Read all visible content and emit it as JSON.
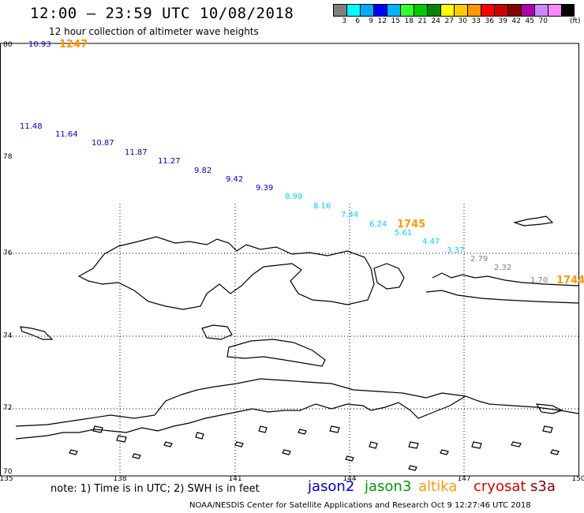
{
  "title": "12:00 – 23:59 UTC 10/08/2018",
  "subtitle": "12 hour collection of altimeter wave heights",
  "scale": {
    "colors": [
      "#808080",
      "#00ffff",
      "#00aaff",
      "#0000ff",
      "#00b4ff",
      "#33ff33",
      "#00cc00",
      "#008800",
      "#ffff00",
      "#ffcc00",
      "#ff9900",
      "#ff0000",
      "#cc0000",
      "#880000",
      "#aa00aa",
      "#cc88ff",
      "#ff88ff",
      "#000000"
    ],
    "labels": [
      "3",
      "6",
      "9",
      "12",
      "15",
      "18",
      "21",
      "24",
      "27",
      "30",
      "33",
      "36",
      "39",
      "42",
      "45",
      "70"
    ],
    "unit": "(ft)"
  },
  "axes": {
    "lon_labels": [
      "135",
      "138",
      "141",
      "144",
      "147",
      "150"
    ],
    "lat_labels": [
      "80",
      "78",
      "76",
      "74",
      "72",
      "70"
    ],
    "lon_range": [
      135,
      150
    ],
    "lat_range": [
      70,
      80
    ]
  },
  "track_colors": {
    "jason2": "#0000cc",
    "altika": "#ff9900",
    "cyan": "#00d0ff",
    "gray": "#808080"
  },
  "observations": [
    {
      "lon": 135.9,
      "lat": 79.95,
      "value": "10.93",
      "color": "jason2"
    },
    {
      "lon": 135.0,
      "lat": 77.95,
      "value": "11.48",
      "color": "jason2"
    },
    {
      "lon": 135.9,
      "lat": 77.7,
      "value": "11.64",
      "color": "jason2"
    },
    {
      "lon": 136.8,
      "lat": 77.45,
      "value": "10.87",
      "color": "jason2"
    },
    {
      "lon": 137.7,
      "lat": 77.2,
      "value": "11.87",
      "color": "jason2"
    },
    {
      "lon": 138.7,
      "lat": 77.0,
      "value": "11.27",
      "color": "jason2"
    },
    {
      "lon": 139.6,
      "lat": 76.75,
      "value": "9.82",
      "color": "jason2"
    },
    {
      "lon": 140.6,
      "lat": 76.5,
      "value": "9.42",
      "color": "jason2"
    },
    {
      "lon": 141.4,
      "lat": 76.3,
      "value": "9.39",
      "color": "jason2"
    },
    {
      "lon": 142.3,
      "lat": 76.1,
      "value": "8.99",
      "color": "cyan"
    },
    {
      "lon": 143.1,
      "lat": 75.9,
      "value": "8.16",
      "color": "cyan"
    },
    {
      "lon": 143.8,
      "lat": 75.65,
      "value": "7.44",
      "color": "cyan"
    },
    {
      "lon": 144.5,
      "lat": 75.3,
      "value": "6.24",
      "color": "cyan"
    },
    {
      "lon": 145.3,
      "lat": 75.08,
      "value": "5.61",
      "color": "cyan"
    },
    {
      "lon": 145.9,
      "lat": 74.85,
      "value": "4.47",
      "color": "cyan"
    },
    {
      "lon": 146.6,
      "lat": 74.6,
      "value": "3.37",
      "color": "cyan"
    },
    {
      "lon": 147.2,
      "lat": 74.35,
      "value": "2.79",
      "color": "gray"
    },
    {
      "lon": 147.8,
      "lat": 74.1,
      "value": "2.32",
      "color": "gray"
    },
    {
      "lon": 148.4,
      "lat": 73.8,
      "value": "1.70",
      "color": "gray"
    }
  ],
  "track_times": [
    {
      "lon": 136.6,
      "lat": 79.95,
      "value": "1247"
    },
    {
      "lon": 145.3,
      "lat": 75.3,
      "value": "1745"
    },
    {
      "lon": 149.2,
      "lat": 73.8,
      "value": "1744"
    }
  ],
  "note": "note:  1) Time is in UTC;  2) SWH is in feet",
  "legend": [
    {
      "name": "jason2",
      "color": "#0000cc"
    },
    {
      "name": "jason3",
      "color": "#009900"
    },
    {
      "name": "altika",
      "color": "#ff9900"
    },
    {
      "name": "cryosat",
      "color": "#dd0000"
    },
    {
      "name": "s3a",
      "color": "#880000"
    }
  ],
  "credit": "NOAA/NESDIS Center for Satellite Applications and Research    Oct  9 12:27:46 UTC 2018"
}
